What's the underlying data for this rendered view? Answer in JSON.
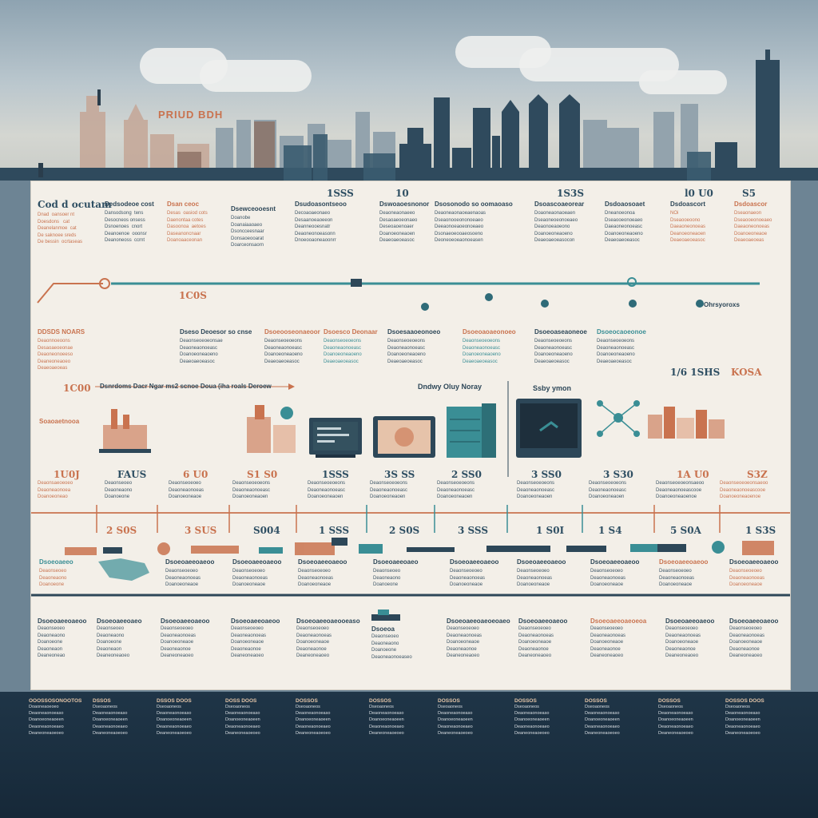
{
  "sky_title": "PRIUD BDH",
  "row1": {
    "cols": [
      {
        "year": "Cod d ocutam",
        "head": "",
        "text": "Dnad  oansoer nt\nDoesdons   cat\nDeanelanmoe  cat\nDe saknoee sreds\nDe bessin  ocrtaseas"
      },
      {
        "year": "",
        "head": "Dedsodeoe cost",
        "text": "Dansodsong  tens\nDesocneos onsess\nDsnoenoes  cnort\nDeanoenoe  ooonsr\nDeanoneoss  ccrnt"
      },
      {
        "year": "",
        "head": "Dsan ceoc",
        "text": "Desas  oasiod cots\nDaenontaa cotes\nDasoonoa  aetoes\nDaseanoncnaar\nDoanoaaceonan"
      },
      {
        "year": "",
        "head": "Dsewceooesnt",
        "text": "Doanobe\nDoanaiaaoaeo\nDsoncceesnaar\nDonsaoeooarat\nDoarceonsaorn"
      },
      {
        "year": "1SSS",
        "head": "Dsudoasontseoo",
        "text": "Decoaoaeonaeo\nDesaanoeaoeeon\nDeanneooesnatr\nDeaoneonoeasonn\nDnoeooaoneaoonrr"
      },
      {
        "year": "10",
        "head": "Dswoaoesnonor",
        "text": "Deaoneaonaeeo\nDesaoaeoeonaeo\nDeseoaoenoaer\nDoanoeoneaoen\nDeaeoaeoeasoc"
      },
      {
        "year": "",
        "head": "Dsosonodo so oomaoaso",
        "text": "Deaoneaonaoeaenaoas\nDseaonooeononoeaeo\nDeeaonoeaoeonoeaeo\nDsonaeoeooaeosoeno\nDeoneoeoeaonoeasen"
      },
      {
        "year": "1S3S",
        "head": "Dsoascoaeorear",
        "text": "Doaoneaonaoeaen\nDseaoneoeonoeaeo\nDeaonoeaoeono\nDoanoeoneaoeno\nDeaeoaeoeasocon"
      },
      {
        "year": "",
        "head": "Dsdoaosoaet",
        "text": "Dneanoeonoa\nDseaooeonoeaeo\nDaeaoneonoeasc\nDoanoeoneaoeno\nDeaeoaeoeasoc"
      },
      {
        "year": "l0 U0",
        "head": "Dsdoascort",
        "text": "NOi\nDseaooeoono\nDaeaoneonoeas\nDeanoeoneaoen\nDeaeoaeoeasoc"
      },
      {
        "year": "S5",
        "head": "Dsdoascor",
        "text": "Dseaonaeon\nDseaooeonoeaeo\nDaeaoneonoeas\nDoanoeoneaoe\nDeaeoaeoeas"
      }
    ]
  },
  "row2": {
    "label_right": "Ohrsyoroxs",
    "year_left": "1C0S",
    "cols": [
      {
        "head": "DDSDS  NOARS",
        "text": "Deaonnoeoons\nDesaoaeoeonae\nDeaoneonoeeso\nDeaneoneaoeo\nDeaeoaeoeas"
      },
      {
        "head": "Dseso Deoesor so  cnse",
        "text": "Deaonseoeoeonsae\nDeaoneaonoeasc\nDoanoeoneaoeno\nDeaeoaeoeasoc"
      },
      {
        "head": "Dsoeooseonaeoor",
        "text": "Deaonseoeoeons\nDeaoneaonoeasc\nDoanoeoneaoeno\nDeaeoaeoeasoc"
      },
      {
        "head": "Dsoesco Deonaar",
        "text": "Deaonseoeoeons\nDeaoneaonoeasc\nDoanoeoneaoeno\nDeaeoaeoeasoc"
      },
      {
        "head": "Dsoesaaoeonoeo",
        "text": "Deaonseoeoeons\nDeaoneaonoeasc\nDoanoeoneaoeno\nDeaeoaeoeasoc"
      },
      {
        "head": "Dsoeoaoaeonoeo",
        "text": "Deaonseoeoeons\nDeaoneaonoeasc\nDoanoeoneaoeno\nDeaeoaeoeasoc"
      },
      {
        "head": "Dsoeoaseaoneoe",
        "text": "Deaonseoeoeons\nDeaoneaonoeasc\nDoanoeoneaoeno\nDeaeoaeoeasoc"
      },
      {
        "head": "Dsoeocaoeonoe",
        "text": "Deaonseoeoeons\nDeaoneaonoeasc\nDoanoeoneaoeno\nDeaeoaeoeasoc"
      }
    ]
  },
  "row3": {
    "year_left": "1C00",
    "banner": "Dsnrdoms  Dacr  Ngar  ms2  scnoe  Doua  (iha  roals   Deroew",
    "caption_mid": "Dndwy  Oluy  Noray",
    "caption_right": "Ssby  ymon",
    "right_title": "1/6  1SHS",
    "right_title2": "KOSA",
    "left_caption": "Soaoaetnooa",
    "cols": [
      {
        "year": "1U0J",
        "text": "Deaonsaeoeoeo\nDeaoneaonoea\nDoanoeoneao"
      },
      {
        "year": "FAUS",
        "text": "Deaonseoeo\nDeaoneaono\nDoanoeone"
      },
      {
        "year": "6 U0",
        "text": "Deaonseoeoeo\nDeaoneaonoeas\nDoanoeoneaoe"
      },
      {
        "year": "S1 S0",
        "text": "Deaonseoeoeons\nDeaoneaonoeasc\nDoanoeoneaoen"
      },
      {
        "year": "1SSS",
        "text": "Deaonseoeoeons\nDeaoneaonoeasc\nDoanoeoneaoen"
      },
      {
        "year": "3S SS",
        "text": "Deaonseoeoeons\nDeaoneaonoeasc\nDoanoeoneaoen"
      },
      {
        "year": "2 SS0",
        "text": "Deaonseoeoeons\nDeaoneaonoeasc\nDoanoeoneaoen"
      },
      {
        "year": "3 SS0",
        "text": "Deaonseoeoeons\nDeaoneaonoeasc\nDoanoeoneaoen"
      },
      {
        "year": "3 S30",
        "text": "Deaonseoeoeons\nDeaoneaonoeasc\nDoanoeoneaoen"
      },
      {
        "year": "1A U0",
        "text": "Deaonseoeoeonsaeoo\nDeaoneaonoeascooe\nDoanoeoneaoenoe"
      },
      {
        "year": "S3Z",
        "text": "Deaonseoeoeonsaeoo\nDeaoneaonoeascooe\nDoanoeoneaoenoe"
      }
    ]
  },
  "row4": {
    "cols": [
      {
        "year": "2 S0S",
        "head": "Dsoeoaeeo",
        "text": "Deaonseoeo\nDeaoneaono\nDoanoeone"
      },
      {
        "year": "3 SUS",
        "head": "Dsoeoaeeoaeoo",
        "text": "Deaonseoeoeo\nDeaoneaonoeas\nDoanoeoneaoe"
      },
      {
        "year": "S004",
        "head": "Dsoeoaeeoaeoo",
        "text": "Deaonseoeoeo\nDeaoneaonoeas\nDoanoeoneaoe"
      },
      {
        "year": "1 SSS",
        "head": "Dsoeoaeeoaeoo",
        "text": "Deaonseoeoeo\nDeaoneaonoeas\nDoanoeoneaoe"
      },
      {
        "year": "2 S0S",
        "head": "Dsoeoaeeoaeo",
        "text": "Deaonseoeo\nDeaoneaono\nDoanoeone"
      },
      {
        "year": "3 SSS",
        "head": "Dsoeoaeeoaeoo",
        "text": "Deaonseoeoeo\nDeaoneaonoeas\nDoanoeoneaoe"
      },
      {
        "year": "1 S0I",
        "head": "Dsoeoaeeoaeoo",
        "text": "Deaonseoeoeo\nDeaoneaonoeas\nDoanoeoneaoe"
      },
      {
        "year": "1 S4",
        "head": "Dsoeoaeeoaeoo",
        "text": "Deaonseoeoeo\nDeaoneaonoeas\nDoanoeoneaoe"
      },
      {
        "year": "5 S0A",
        "head": "Dsoeoaeeoaeoo",
        "text": "Deaonseoeoeo\nDeaoneaonoeas\nDoanoeoneaoe"
      },
      {
        "year": "1 S3S",
        "head": "Dsoeoaeeoaeoo",
        "text": "Deaonseoeoeo\nDeaoneaonoeas\nDoanoeoneaoe"
      }
    ]
  },
  "row5": {
    "cols": [
      {
        "head": "Dsoeoaeeoaeoo",
        "text": "Deaonseoeo\nDeaoneaono\nDoanoeone\nDeaoneaon\nDeaneoneao"
      },
      {
        "head": "Dsoeoaeeoaeo",
        "text": "Deaonseoeo\nDeaoneaono\nDoanoeone\nDeaoneaon\nDeaneoneaoeo"
      },
      {
        "head": "Dsoeoaeeoaeoo",
        "text": "Deaonseoeoeo\nDeaoneaonoeas\nDoanoeoneaoe\nDeaoneaonoe\nDeaneoneaoeo"
      },
      {
        "head": "Dsoeoaeeoaeoo",
        "text": "Deaonseoeoeo\nDeaoneaonoeas\nDoanoeoneaoe\nDeaoneaonoe\nDeaneoneaoeo"
      },
      {
        "head": "Dsoeoaeeoaeooeaso",
        "text": "Deaonseoeoeo\nDeaoneaonoeas\nDoanoeoneaoe\nDeaoneaonoe\nDeaneoneaoeo"
      },
      {
        "head": "Dsoeoa",
        "text": "Deaonseoeo\nDeaoneaono\nDoanoeone\nDeaoneaonoeaseo"
      },
      {
        "head": "Dsoeoaeeoaeoeoaeo",
        "text": "Deaonseoeoeo\nDeaoneaonoeas\nDoanoeoneaoe\nDeaoneaonoe\nDeaneoneaoeo"
      },
      {
        "head": "Dsoeoaeeoaeoo",
        "text": "Deaonseoeoeo\nDeaoneaonoeas\nDoanoeoneaoe\nDeaoneaonoe\nDeaneoneaoeo"
      },
      {
        "head": "Dsoeoaeeoaeoeoa",
        "text": "Deaonseoeoeo\nDeaoneaonoeas\nDoanoeoneaoe\nDeaoneaonoe\nDeaneoneaoeo"
      },
      {
        "head": "Dsoeoaeeoaeoo",
        "text": "Deaonseoeoeo\nDeaoneaonoeas\nDoanoeoneaoe\nDeaoneaonoe\nDeaneoneaoeo"
      },
      {
        "head": "Dsoeoaeeoaeoo",
        "text": "Deaonseoeoeo\nDeaoneaonoeas\nDoanoeoneaoe\nDeaoneaonoe\nDeaneoneaoeo"
      }
    ]
  },
  "footer": {
    "cols": [
      {
        "head": "OOOSSOSONOOTOS",
        "text": "Doaoneaoeoeo\nDeaoneaonoeaso\nDoanoeoneaoeen\nDeaoneaonoeaeo\nDeaneoneaoeoeo"
      },
      {
        "head": "DSSOS",
        "text": "Dseoaoneos\nDeaoneaonoeaso\nDoanoeoneaoeen\nDeaoneaonoeaeo\nDeaneoneaoeoeo"
      },
      {
        "head": "DSSOS  DOOS",
        "text": "Dseoaoneos\nDeaoneaonoeaso\nDoanoeoneaoeen\nDeaoneaonoeaeo\nDeaneoneaoeoeo"
      },
      {
        "head": "DOSS  DOOS",
        "text": "Dseoaoneos\nDeaoneaonoeaso\nDoanoeoneaoeen\nDeaoneaonoeaeo\nDeaneoneaoeoeo"
      },
      {
        "head": "DOSSOS",
        "text": "Dseoaoneos\nDeaoneaonoeaso\nDoanoeoneaoeen\nDeaoneaonoeaeo\nDeaneoneaoeoeo"
      },
      {
        "head": "DOSSOS",
        "text": "Dseoaoneos\nDeaoneaonoeaso\nDoanoeoneaoeen\nDeaoneaonoeaeo\nDeaneoneaoeoeo"
      },
      {
        "head": "DOSSOS",
        "text": "Dseoaoneos\nDeaoneaonoeaso\nDoanoeoneaoeen\nDeaoneaonoeaeo\nDeaneoneaoeoeo"
      },
      {
        "head": "DOSSOS",
        "text": "Dseoaoneos\nDeaoneaonoeaso\nDoanoeoneaoeen\nDeaoneaonoeaeo\nDeaneoneaoeoeo"
      },
      {
        "head": "DOSSOS",
        "text": "Dseoaoneos\nDeaoneaonoeaso\nDoanoeoneaoeen\nDeaoneaonoeaeo\nDeaneoneaoeoeo"
      },
      {
        "head": "DOSSOS",
        "text": "Dseoaoneos\nDeaoneaonoeaso\nDoanoeoneaoeen\nDeaoneaonoeaeo\nDeaneoneaoeoeo"
      },
      {
        "head": "DOSSOS  DOOS",
        "text": "Dseoaoneos\nDeaoneaonoeaso\nDoanoeoneaoeen\nDeaoneaonoeaeo\nDeaneoneaoeoeo"
      }
    ]
  },
  "colors": {
    "rust": "#c9734f",
    "teal": "#3a8e95",
    "navy": "#2d4758",
    "paper": "#f3efe8"
  }
}
